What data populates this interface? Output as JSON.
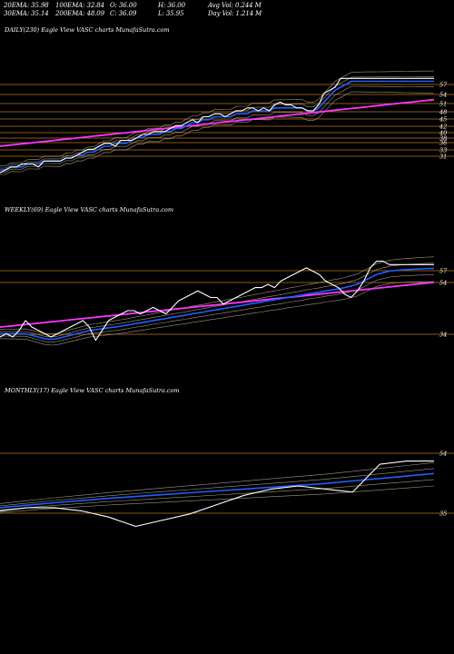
{
  "header": {
    "row1": [
      {
        "label": "20EMA: 35.98"
      },
      {
        "label": "100EMA: 32.84"
      },
      {
        "label": "O: 36.00"
      },
      {
        "label": "H: 36.00"
      },
      {
        "label": "Avg Vol: 0.244  M"
      }
    ],
    "row2": [
      {
        "label": "30EMA: 35.14"
      },
      {
        "label": "200EMA: 48.09"
      },
      {
        "label": "C: 36.09"
      },
      {
        "label": "L: 35.95"
      },
      {
        "label": "Day Vol: 1.214  M"
      }
    ]
  },
  "colors": {
    "background": "#000000",
    "price": "#ffffff",
    "ema_fast": "#1f5fff",
    "ema_slow": "#ff33ff",
    "level_line": "#b8741a",
    "ma_bands": "#d8c8a8"
  },
  "chart_data": [
    {
      "type": "line",
      "title": "DAILY(230) Eagle  View  VASC charts MunafaSutra.com",
      "ticks": [
        "57",
        "54",
        "51",
        "48",
        "45",
        "42",
        "40",
        "38",
        "36",
        "33",
        "31"
      ],
      "series": [
        {
          "color": "#ffffff",
          "values": [
            23,
            24,
            25,
            25,
            26,
            26,
            26,
            25,
            27,
            27,
            27,
            27,
            28,
            28,
            29,
            30,
            31,
            31,
            32,
            33,
            33,
            32,
            34,
            34,
            34,
            35,
            36,
            36,
            37,
            37,
            37,
            38,
            39,
            39,
            40,
            41,
            40,
            42,
            42,
            43,
            43,
            42,
            43,
            44,
            44,
            45,
            45,
            44,
            45,
            44,
            46,
            47,
            46,
            46,
            45,
            45,
            44,
            44,
            46,
            50,
            51,
            52,
            55,
            55,
            55,
            55,
            55,
            55,
            55,
            55,
            55,
            55,
            55,
            55,
            55,
            55,
            55,
            55,
            55,
            55
          ]
        },
        {
          "color": "#1f5fff",
          "values": [
            24,
            24,
            25,
            25,
            25,
            26,
            26,
            26,
            27,
            27,
            27,
            27,
            28,
            28,
            29,
            29,
            30,
            30,
            31,
            32,
            32,
            33,
            33,
            33,
            34,
            35,
            35,
            36,
            36,
            36,
            37,
            37,
            38,
            38,
            39,
            40,
            40,
            41,
            41,
            42,
            42,
            42,
            42,
            43,
            43,
            43,
            44,
            44,
            44,
            44,
            45,
            45,
            45,
            45,
            45,
            45,
            44,
            44,
            45,
            47,
            49,
            51,
            52,
            53,
            54,
            54,
            54,
            54,
            54,
            54,
            54,
            54,
            54,
            54,
            54,
            54,
            54,
            54,
            54,
            54
          ]
        },
        {
          "color": "#ff33ff",
          "values": [
            32,
            32.2,
            32.4,
            32.6,
            32.8,
            33,
            33.2,
            33.4,
            33.6,
            33.8,
            34,
            34.2,
            34.4,
            34.6,
            34.8,
            35,
            35.2,
            35.4,
            35.6,
            35.8,
            36,
            36.2,
            36.4,
            36.6,
            36.8,
            37,
            37.2,
            37.4,
            37.6,
            37.8,
            38,
            38.2,
            38.4,
            38.6,
            38.8,
            39,
            39.2,
            39.4,
            39.6,
            39.8,
            40,
            40.2,
            40.4,
            40.6,
            40.8,
            41,
            41.2,
            41.4,
            41.6,
            41.8,
            42,
            42.2,
            42.4,
            42.6,
            42.8,
            43,
            43.2,
            43.4,
            43.6,
            43.8,
            44,
            44.2,
            44.4,
            44.6,
            44.8,
            45,
            45.2,
            45.4,
            45.6,
            45.8,
            46,
            46.2,
            46.4,
            46.6,
            46.8,
            47,
            47.2,
            47.4,
            47.6,
            47.8
          ]
        }
      ]
    },
    {
      "type": "line",
      "title": "WEEKLY(69) Eagle  View  VASC charts MunafaSutra.com",
      "ticks": [
        "57",
        "54",
        "34"
      ],
      "series": [
        {
          "color": "#ffffff",
          "values": [
            33,
            34,
            33,
            35,
            38,
            36,
            35,
            34,
            33,
            34,
            35,
            36,
            37,
            38,
            36,
            32,
            35,
            38,
            39,
            40,
            41,
            41,
            40,
            41,
            42,
            41,
            40,
            42,
            44,
            45,
            46,
            47,
            46,
            45,
            45,
            43,
            44,
            45,
            46,
            47,
            48,
            48,
            49,
            48,
            50,
            51,
            52,
            53,
            54,
            53,
            52,
            50,
            49,
            48,
            46,
            45,
            47,
            50,
            54,
            56,
            56,
            55,
            55,
            55,
            55,
            55,
            55,
            55,
            55
          ]
        },
        {
          "color": "#1f5fff",
          "values": [
            34,
            34,
            34,
            34,
            34,
            33.5,
            33,
            32.5,
            32.3,
            32.5,
            33,
            33.5,
            34,
            34.5,
            35,
            35.2,
            35.5,
            35.8,
            36,
            36.3,
            36.6,
            37,
            37.3,
            37.6,
            38,
            38.3,
            38.6,
            39,
            39.3,
            39.6,
            40,
            40.3,
            40.6,
            41,
            41.3,
            41.6,
            42,
            42.3,
            42.6,
            43,
            43.3,
            43.6,
            44,
            44.3,
            44.6,
            45,
            45.3,
            45.6,
            46,
            46.3,
            46.6,
            47,
            47.3,
            47.6,
            48,
            48.5,
            49,
            50,
            51,
            52,
            52.5,
            53,
            53.2,
            53.4,
            53.5,
            53.6,
            53.7,
            53.8,
            53.8
          ]
        },
        {
          "color": "#ff33ff",
          "values": [
            36,
            36.2,
            36.4,
            36.6,
            36.8,
            37,
            37.2,
            37.4,
            37.6,
            37.8,
            38,
            38.2,
            38.4,
            38.6,
            38.8,
            39,
            39.2,
            39.4,
            39.6,
            39.8,
            40,
            40.2,
            40.4,
            40.6,
            40.8,
            41,
            41.2,
            41.4,
            41.6,
            41.8,
            42,
            42.2,
            42.4,
            42.6,
            42.8,
            43,
            43.2,
            43.4,
            43.6,
            43.8,
            44,
            44.2,
            44.4,
            44.6,
            44.8,
            45,
            45.2,
            45.4,
            45.6,
            45.8,
            46,
            46.2,
            46.4,
            46.6,
            46.8,
            47,
            47.2,
            47.4,
            47.6,
            47.8,
            48,
            48.2,
            48.4,
            48.6,
            48.8,
            49,
            49.2,
            49.4,
            49.6
          ]
        }
      ]
    },
    {
      "type": "line",
      "title": "MONTHLY(17) Eagle  View  VASC charts MunafaSutra.com",
      "ticks": [
        "54",
        "35"
      ],
      "series": [
        {
          "color": "#ffffff",
          "values": [
            33,
            34,
            34,
            33,
            31,
            28,
            30,
            32,
            35,
            38,
            40,
            41,
            40,
            39,
            48,
            49,
            49
          ]
        },
        {
          "color": "#1f5fff",
          "values": [
            34,
            34.8,
            35.6,
            36.3,
            37,
            37.6,
            38.2,
            38.8,
            39.4,
            40,
            40.6,
            41.2,
            41.8,
            42.6,
            43.4,
            44.2,
            45
          ]
        }
      ]
    }
  ]
}
